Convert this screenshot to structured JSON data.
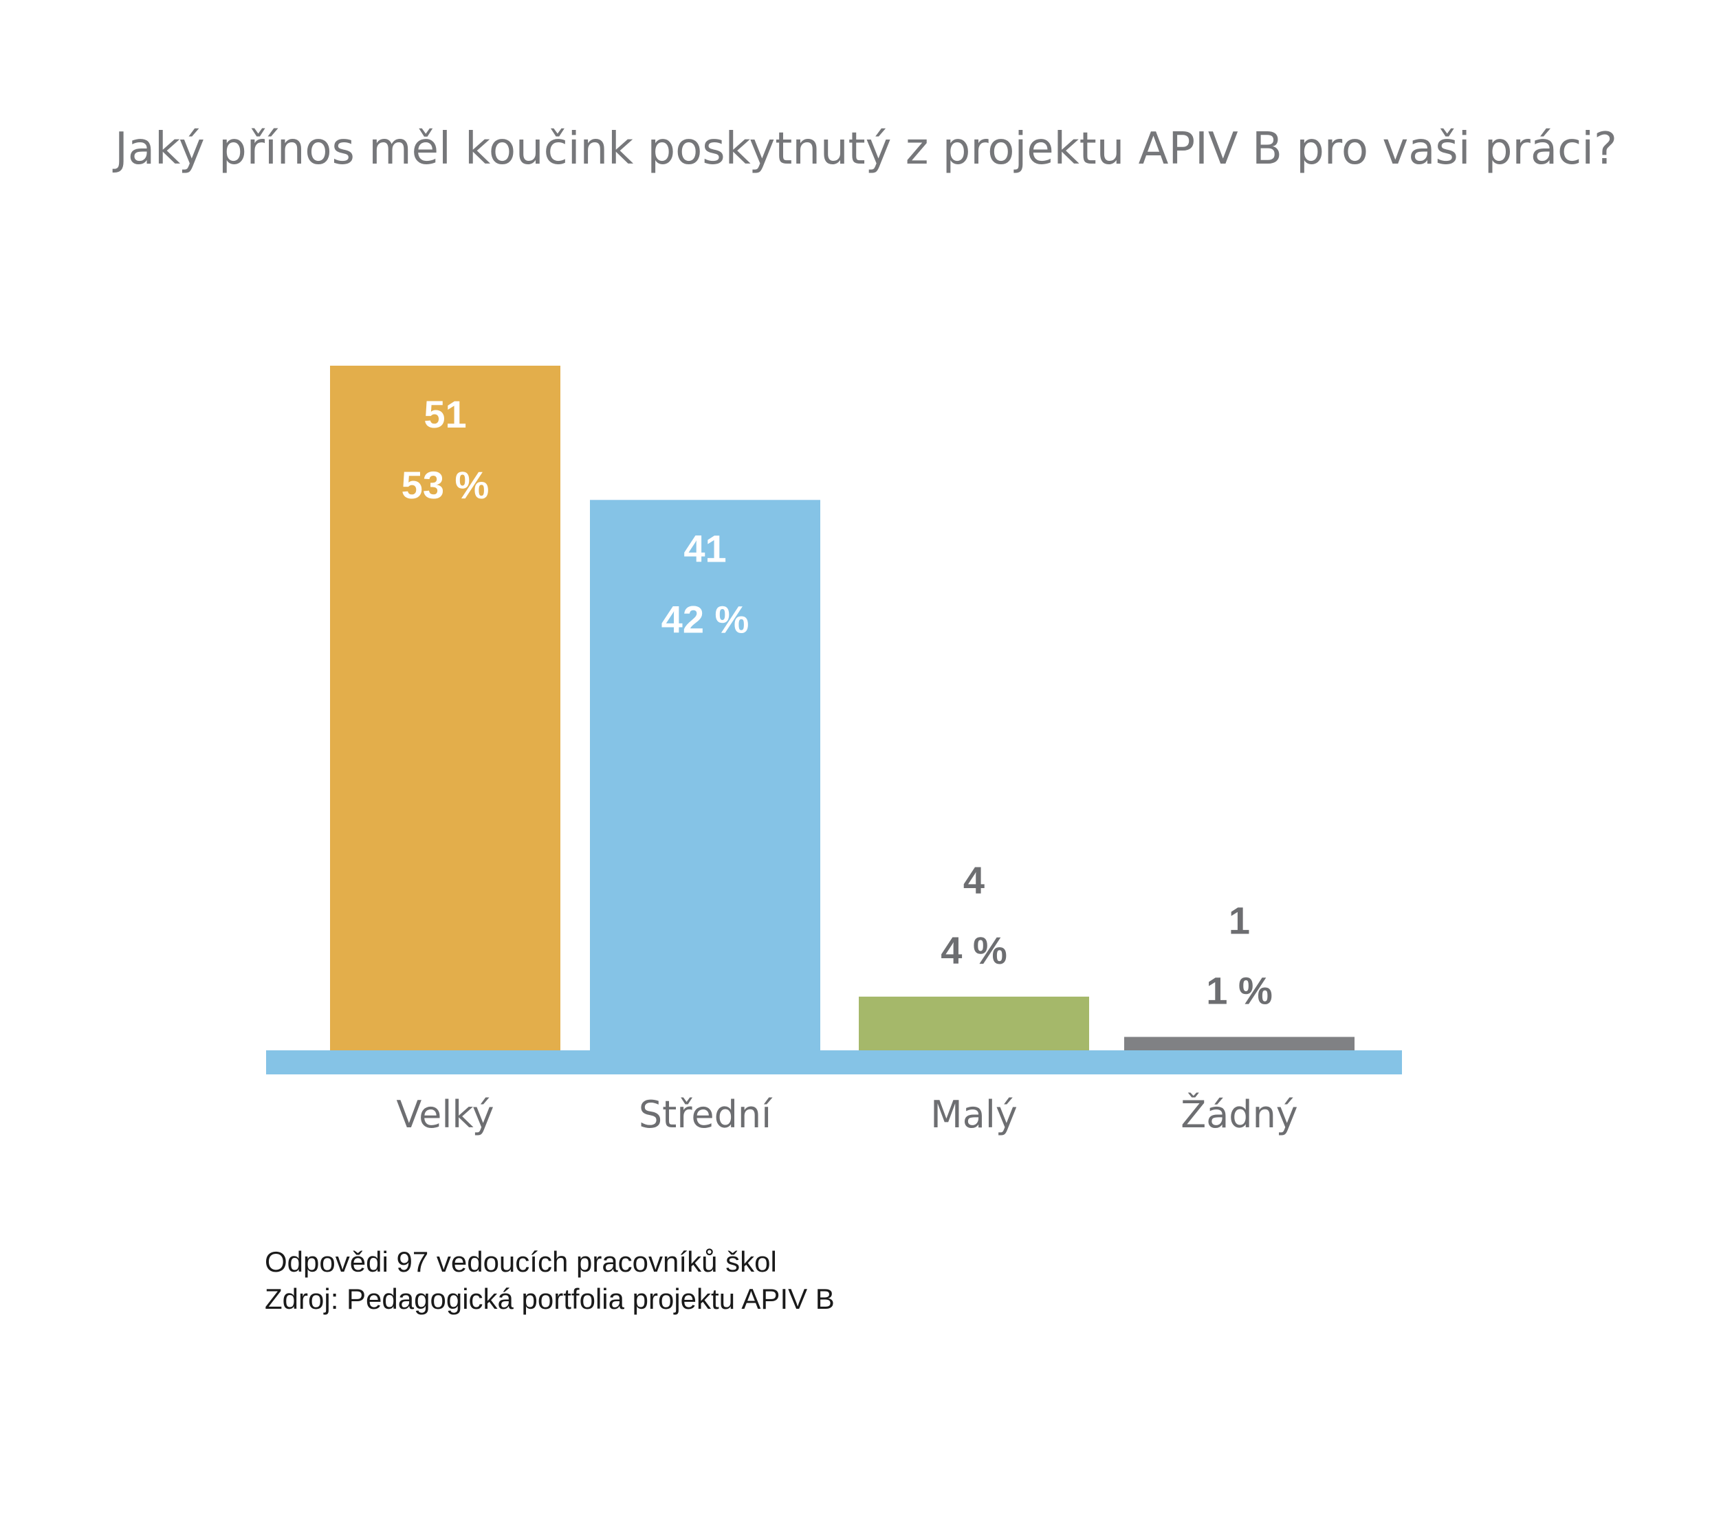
{
  "chart_data": {
    "type": "bar",
    "title": "Jaký přínos měl koučink poskytnutý z projektu APIV B pro vaši práci?",
    "categories": [
      "Velký",
      "Střední",
      "Malý",
      "Žádný"
    ],
    "values": [
      51,
      41,
      4,
      1
    ],
    "percent_labels": [
      "53 %",
      "42 %",
      "4 %",
      "1 %"
    ],
    "colors": [
      "#e3ae4b",
      "#85c3e6",
      "#a5b86a",
      "#808184"
    ],
    "baseline_color": "#85c3e6",
    "label_color_inside": "#ffffff",
    "label_color_outside": "#6d6e71",
    "category_label_color": "#6d6e71",
    "ylim": [
      0,
      51
    ],
    "grid": false,
    "legend": "none",
    "xlabel": "",
    "ylabel": ""
  },
  "notes": {
    "respondents": "Odpovědi 97 vedoucích pracovníků škol",
    "source": "Zdroj: Pedagogická portfolia projektu APIV B"
  }
}
